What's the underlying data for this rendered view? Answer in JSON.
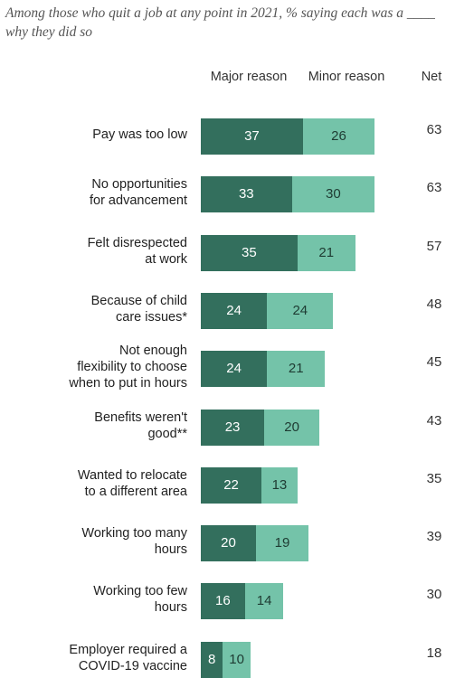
{
  "subtitle": "Among those who quit a job at any point in 2021, % saying each was a ____ why they did so",
  "chart_data": {
    "type": "bar",
    "orientation": "horizontal",
    "stacked": true,
    "columns": {
      "major": "Major reason",
      "minor": "Minor reason",
      "net": "Net"
    },
    "categories": [
      "Pay was too low",
      "No opportunities for advancement",
      "Felt disrespected at work",
      "Because of child care issues*",
      "Not enough flexibility to choose when to put in hours",
      "Benefits weren't good**",
      "Wanted to relocate to a different area",
      "Working too many hours",
      "Working too few hours",
      "Employer required a COVID-19 vaccine"
    ],
    "series": [
      {
        "name": "Major reason",
        "color": "#336f5d",
        "values": [
          37,
          33,
          35,
          24,
          24,
          23,
          22,
          20,
          16,
          8
        ]
      },
      {
        "name": "Minor reason",
        "color": "#74c3a9",
        "values": [
          26,
          30,
          21,
          24,
          21,
          20,
          13,
          19,
          14,
          10
        ]
      }
    ],
    "net": [
      63,
      63,
      57,
      48,
      45,
      43,
      35,
      39,
      30,
      18
    ],
    "grid": false,
    "legend": "column-headers"
  }
}
